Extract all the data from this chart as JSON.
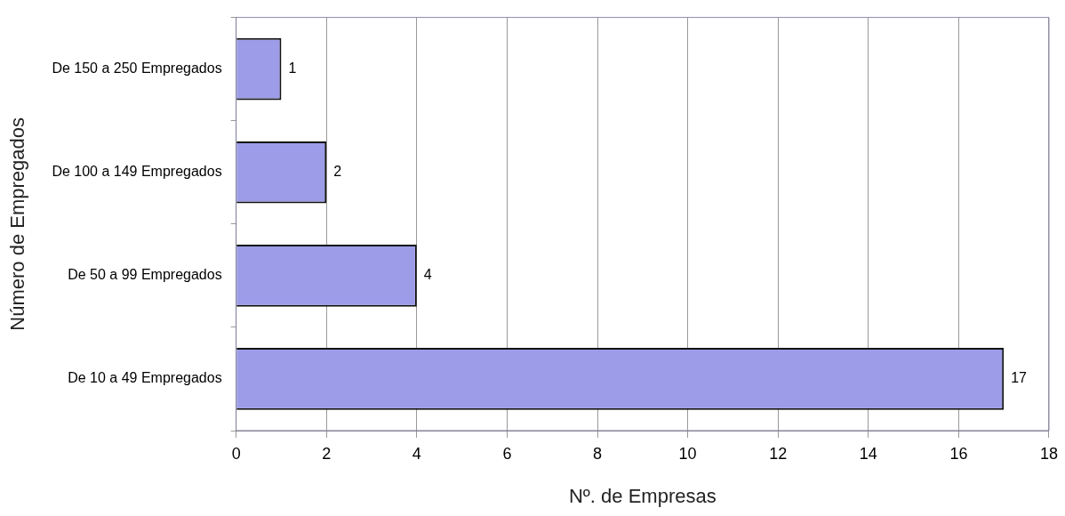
{
  "chart_data": {
    "type": "bar",
    "orientation": "horizontal",
    "categories": [
      "De 150 a 250 Empregados",
      "De 100 a 149 Empregados",
      "De 50 a 99 Empregados",
      "De 10 a 49 Empregados"
    ],
    "values": [
      1,
      2,
      4,
      17
    ],
    "color": "#9c9ce8",
    "xlim": [
      0,
      18
    ],
    "xticks": [
      0,
      2,
      4,
      6,
      8,
      10,
      12,
      14,
      16,
      18
    ],
    "xlabel": "Nº. de Empresas",
    "ylabel": "Número de Empregados",
    "grid": "x",
    "legend": false,
    "data_labels": true
  }
}
